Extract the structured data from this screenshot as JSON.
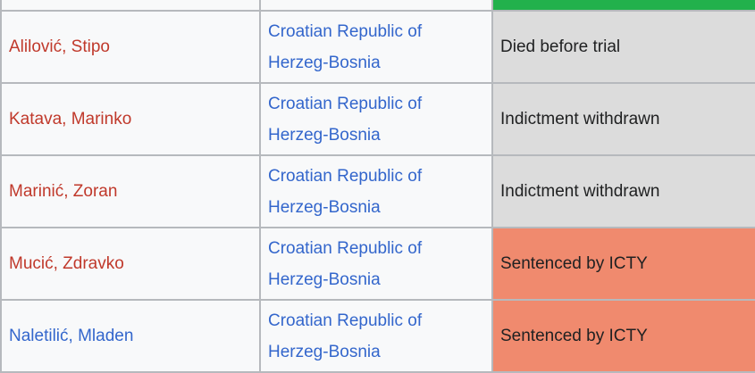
{
  "colors": {
    "redlink": "#c0392b",
    "bluelink": "#3366cc",
    "status_gray": "#dcdcdc",
    "status_sentenced": "#f08a6e",
    "status_green": "#22b14c"
  },
  "rows": [
    {
      "name": "Alilović, Stipo",
      "name_link": "red",
      "entity_line1": "Croatian Republic of",
      "entity_line2": "Herzeg-Bosnia",
      "status": "Died before trial",
      "status_kind": "gray"
    },
    {
      "name": "Katava, Marinko",
      "name_link": "red",
      "entity_line1": "Croatian Republic of",
      "entity_line2": "Herzeg-Bosnia",
      "status": "Indictment withdrawn",
      "status_kind": "gray"
    },
    {
      "name": "Marinić, Zoran",
      "name_link": "red",
      "entity_line1": "Croatian Republic of",
      "entity_line2": "Herzeg-Bosnia",
      "status": "Indictment withdrawn",
      "status_kind": "gray"
    },
    {
      "name": "Mucić, Zdravko",
      "name_link": "red",
      "entity_line1": "Croatian Republic of",
      "entity_line2": "Herzeg-Bosnia",
      "status": "Sentenced by ICTY",
      "status_kind": "sentenced"
    },
    {
      "name": "Naletilić, Mladen",
      "name_link": "blue",
      "entity_line1": "Croatian Republic of",
      "entity_line2": "Herzeg-Bosnia",
      "status": "Sentenced by ICTY",
      "status_kind": "sentenced"
    }
  ]
}
